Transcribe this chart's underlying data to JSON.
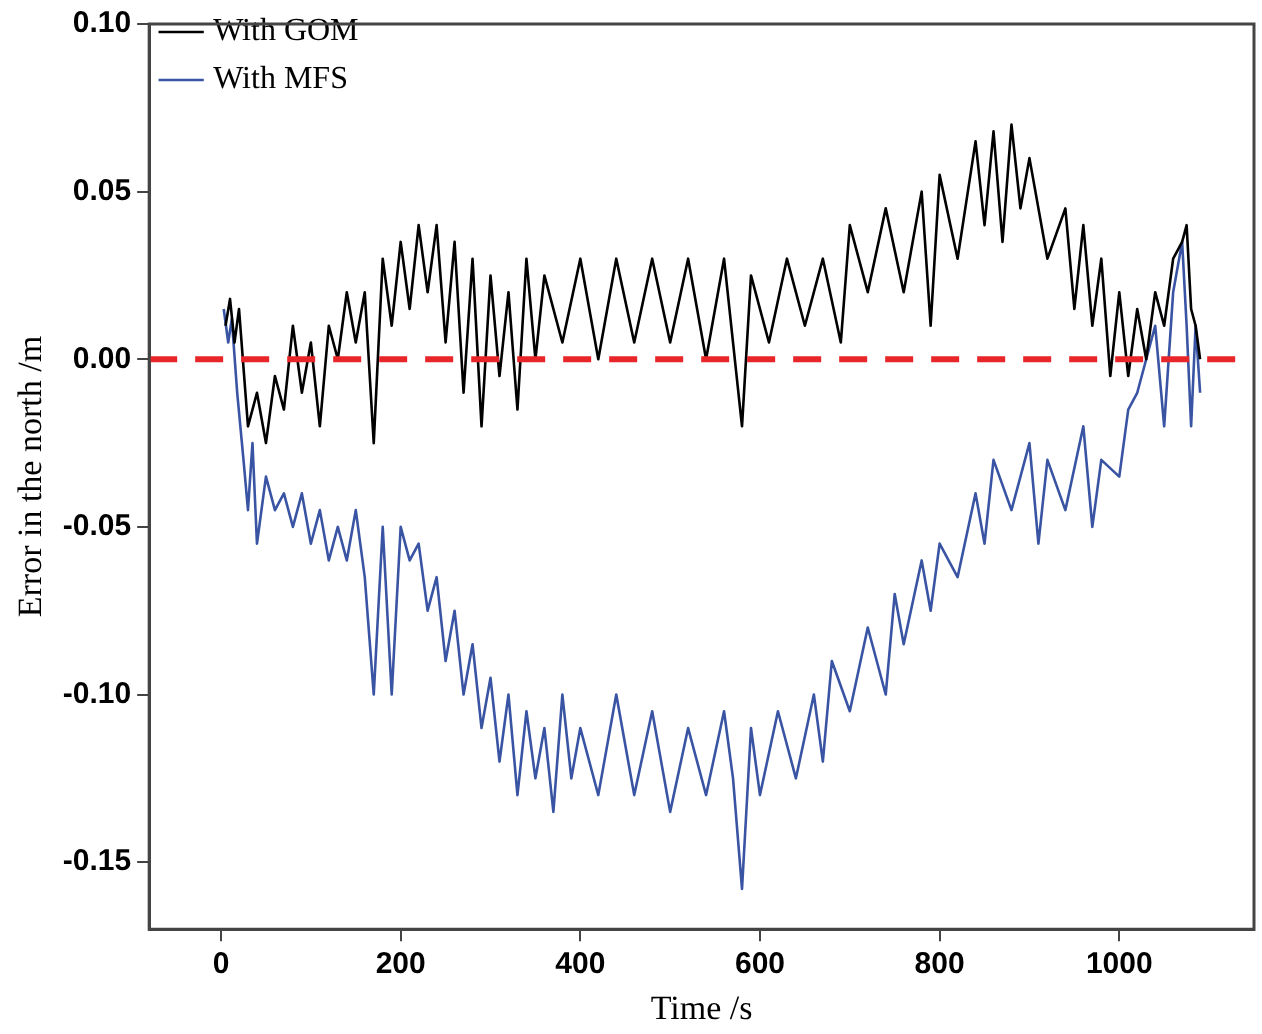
{
  "chart_data": {
    "type": "line",
    "xlabel": "Time /s",
    "ylabel": "Error in the north /m",
    "xlim": [
      -80,
      1150
    ],
    "xticks": [
      0,
      200,
      400,
      600,
      800,
      1000
    ],
    "ylim": [
      -0.17,
      0.1
    ],
    "yticks": [
      {
        "value": -0.15,
        "label": "-0.15"
      },
      {
        "value": -0.1,
        "label": "-0.10"
      },
      {
        "value": -0.05,
        "label": "-0.05"
      },
      {
        "value": 0,
        "label": "0.00"
      },
      {
        "value": 0.05,
        "label": "0.05"
      },
      {
        "value": 0.1,
        "label": "0.10"
      }
    ],
    "grid": false,
    "legend": "top left",
    "marker": "none",
    "line_style": "solid",
    "ref_lines": [
      {
        "axis": "y",
        "value": 0,
        "label": null,
        "color": "#e8262a",
        "line_style": "dashed"
      }
    ],
    "series": [
      {
        "name": "With GOM",
        "color": "#000000",
        "x": [
          5,
          10,
          15,
          20,
          30,
          40,
          50,
          60,
          70,
          80,
          90,
          100,
          110,
          120,
          130,
          140,
          150,
          160,
          170,
          180,
          190,
          200,
          210,
          220,
          230,
          240,
          250,
          260,
          270,
          280,
          290,
          300,
          310,
          320,
          330,
          340,
          350,
          360,
          380,
          400,
          420,
          440,
          460,
          480,
          500,
          520,
          540,
          560,
          580,
          590,
          610,
          630,
          650,
          670,
          690,
          700,
          720,
          740,
          760,
          780,
          790,
          800,
          820,
          840,
          850,
          860,
          870,
          880,
          890,
          900,
          920,
          940,
          950,
          960,
          970,
          980,
          990,
          1000,
          1010,
          1020,
          1030,
          1040,
          1050,
          1060,
          1070,
          1075,
          1080,
          1085,
          1090
        ],
        "values": [
          0.01,
          0.018,
          0.005,
          0.015,
          -0.02,
          -0.01,
          -0.025,
          -0.005,
          -0.015,
          0.01,
          -0.01,
          0.005,
          -0.02,
          0.01,
          0,
          0.02,
          0.005,
          0.02,
          -0.025,
          0.03,
          0.01,
          0.035,
          0.015,
          0.04,
          0.02,
          0.04,
          0.005,
          0.035,
          -0.01,
          0.03,
          -0.02,
          0.025,
          -0.005,
          0.02,
          -0.015,
          0.03,
          0,
          0.025,
          0.005,
          0.03,
          0,
          0.03,
          0.005,
          0.03,
          0.005,
          0.03,
          0,
          0.03,
          -0.02,
          0.025,
          0.005,
          0.03,
          0.01,
          0.03,
          0.005,
          0.04,
          0.02,
          0.045,
          0.02,
          0.05,
          0.01,
          0.055,
          0.03,
          0.065,
          0.04,
          0.068,
          0.035,
          0.07,
          0.045,
          0.06,
          0.03,
          0.045,
          0.015,
          0.04,
          0.01,
          0.03,
          -0.005,
          0.02,
          -0.005,
          0.015,
          0,
          0.02,
          0.01,
          0.03,
          0.035,
          0.04,
          0.015,
          0.01,
          0
        ]
      },
      {
        "name": "With MFS",
        "color": "#3a54a4",
        "x": [
          3,
          8,
          12,
          18,
          25,
          30,
          35,
          40,
          50,
          60,
          70,
          80,
          90,
          100,
          110,
          120,
          130,
          140,
          150,
          160,
          170,
          180,
          190,
          200,
          210,
          220,
          230,
          240,
          250,
          260,
          270,
          280,
          290,
          300,
          310,
          320,
          330,
          340,
          350,
          360,
          370,
          380,
          390,
          400,
          420,
          440,
          460,
          480,
          500,
          520,
          540,
          560,
          570,
          580,
          590,
          600,
          620,
          640,
          660,
          670,
          680,
          700,
          720,
          740,
          750,
          760,
          780,
          790,
          800,
          820,
          840,
          850,
          860,
          880,
          900,
          910,
          920,
          940,
          960,
          970,
          980,
          1000,
          1010,
          1020,
          1030,
          1040,
          1050,
          1060,
          1070,
          1075,
          1080,
          1085,
          1090
        ],
        "values": [
          0.015,
          0.005,
          0.012,
          -0.01,
          -0.03,
          -0.045,
          -0.025,
          -0.055,
          -0.035,
          -0.045,
          -0.04,
          -0.05,
          -0.04,
          -0.055,
          -0.045,
          -0.06,
          -0.05,
          -0.06,
          -0.045,
          -0.065,
          -0.1,
          -0.05,
          -0.1,
          -0.05,
          -0.06,
          -0.055,
          -0.075,
          -0.065,
          -0.09,
          -0.075,
          -0.1,
          -0.085,
          -0.11,
          -0.095,
          -0.12,
          -0.1,
          -0.13,
          -0.105,
          -0.125,
          -0.11,
          -0.135,
          -0.1,
          -0.125,
          -0.11,
          -0.13,
          -0.1,
          -0.13,
          -0.105,
          -0.135,
          -0.11,
          -0.13,
          -0.105,
          -0.125,
          -0.158,
          -0.11,
          -0.13,
          -0.105,
          -0.125,
          -0.1,
          -0.12,
          -0.09,
          -0.105,
          -0.08,
          -0.1,
          -0.07,
          -0.085,
          -0.06,
          -0.075,
          -0.055,
          -0.065,
          -0.04,
          -0.055,
          -0.03,
          -0.045,
          -0.025,
          -0.055,
          -0.03,
          -0.045,
          -0.02,
          -0.05,
          -0.03,
          -0.035,
          -0.015,
          -0.01,
          0,
          0.01,
          -0.02,
          0.02,
          0.035,
          0.01,
          -0.02,
          0.01,
          -0.01
        ]
      }
    ]
  }
}
